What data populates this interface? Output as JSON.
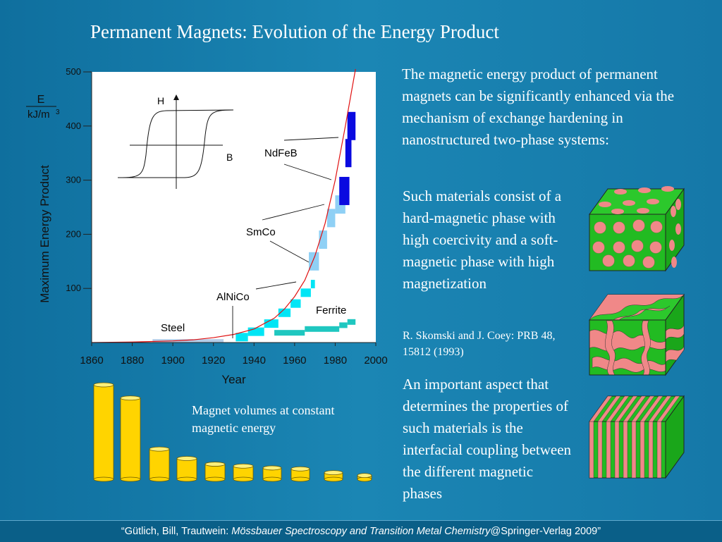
{
  "slide": {
    "title": "Permanent Magnets: Evolution of the Energy Product",
    "paragraph1": "The magnetic energy product of permanent magnets can be significantly enhanced via the mechanism of exchange hardening in nanostructured two-phase systems:",
    "paragraph2": "Such materials consist of a hard-magnetic phase with  high coercivity and a soft-magnetic phase with high magnetization",
    "reference": "R. Skomski and J. Coey: PRB 48, 15812 (1993)",
    "paragraph3": "An important aspect that determines the properties of such materials is the interfacial coupling between the different magnetic phases",
    "cylinder_caption": "Magnet volumes at constant magnetic energy",
    "footer_prefix": "“Gütlich, Bill, Trautwein: ",
    "footer_title": "Mössbauer Spectroscopy and Transition Metal Chemistry",
    "footer_suffix": "@Springer-Verlag 2009”"
  },
  "colors": {
    "background": "#1578a8",
    "ndfeb": "#0a0ae0",
    "smco": "#8fd0f5",
    "alnico": "#00e5f5",
    "ferrite": "#1fc7c0",
    "steel": "#b4cde8",
    "curve": "#e01010",
    "cylinder": "#ffd400",
    "hard_phase": "#f08888",
    "soft_phase": "#22bb22"
  },
  "chart_data": {
    "type": "line",
    "title": "",
    "xlabel": "Year",
    "ylabel": "Maximum Energy Product",
    "ylabel_fraction_top": "E",
    "ylabel_fraction_bottom": "kJ/m",
    "ylabel_fraction_exp": "3",
    "xlim": [
      1860,
      2000
    ],
    "ylim": [
      0,
      500
    ],
    "xticks": [
      "1860",
      "1880",
      "1900",
      "1920",
      "1940",
      "1960",
      "1980",
      "2000"
    ],
    "yticks": [
      "100",
      "200",
      "300",
      "400",
      "500"
    ],
    "grid": false,
    "curve": {
      "x": [
        1860,
        1880,
        1900,
        1910,
        1920,
        1930,
        1940,
        1950,
        1955,
        1960,
        1965,
        1970,
        1975,
        1980,
        1985,
        1990
      ],
      "y": [
        0,
        1,
        3,
        5,
        9,
        15,
        25,
        45,
        62,
        85,
        115,
        160,
        220,
        300,
        400,
        510
      ]
    },
    "series": [
      {
        "name": "Steel",
        "steps": [
          [
            1890,
            1925,
            3
          ]
        ]
      },
      {
        "name": "AlNiCo",
        "steps": [
          [
            1931,
            1937,
            10
          ],
          [
            1937,
            1945,
            20
          ],
          [
            1945,
            1952,
            35
          ],
          [
            1952,
            1958,
            55
          ],
          [
            1958,
            1963,
            72
          ],
          [
            1963,
            1968,
            92
          ],
          [
            1968,
            1970,
            108
          ]
        ]
      },
      {
        "name": "Ferrite",
        "steps": [
          [
            1950,
            1965,
            18
          ],
          [
            1965,
            1982,
            25
          ],
          [
            1982,
            1986,
            32
          ],
          [
            1986,
            1990,
            38
          ]
        ]
      },
      {
        "name": "SmCo",
        "steps": [
          [
            1967,
            1972,
            150
          ],
          [
            1972,
            1976,
            190
          ],
          [
            1976,
            1980,
            230
          ],
          [
            1980,
            1985,
            255
          ]
        ]
      },
      {
        "name": "NdFeB",
        "steps": [
          [
            1982,
            1987,
            280
          ],
          [
            1985,
            1988,
            350
          ],
          [
            1986,
            1990,
            400
          ]
        ]
      }
    ],
    "inset_axis_labels": {
      "h": "H",
      "b": "B"
    }
  },
  "cylinders": {
    "relative_volumes": [
      1.0,
      0.86,
      0.32,
      0.22,
      0.16,
      0.14,
      0.12,
      0.11,
      0.07,
      0.04
    ]
  }
}
